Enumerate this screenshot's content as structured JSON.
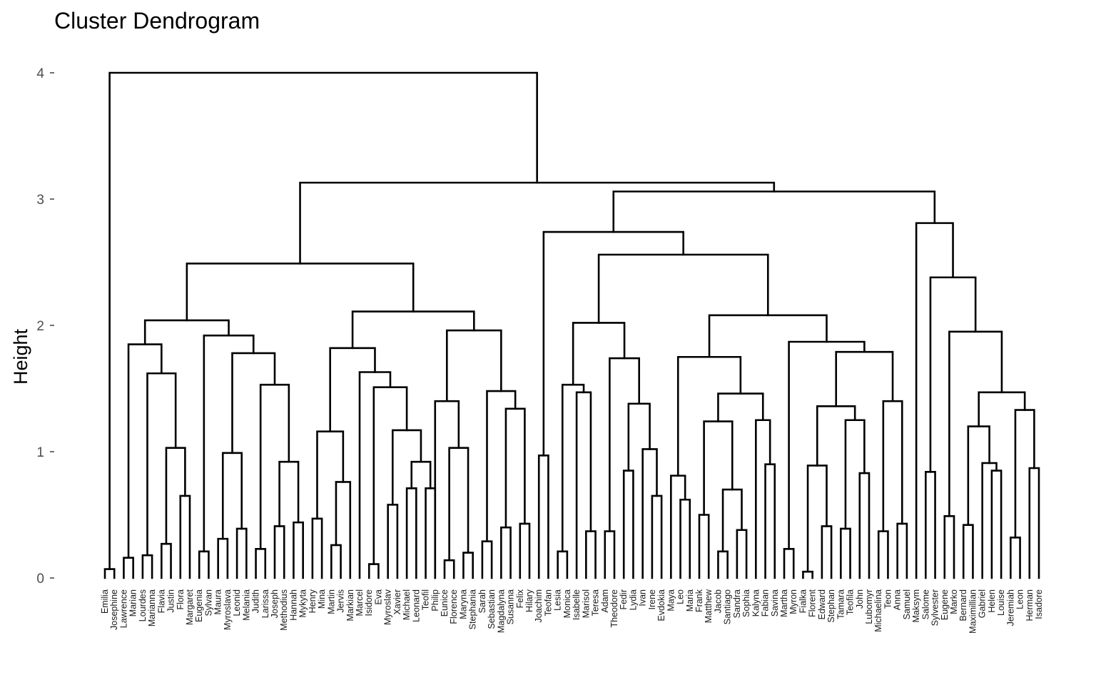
{
  "chart_data": {
    "type": "dendrogram",
    "title": "Cluster Dendrogram",
    "xlabel": "",
    "ylabel": "Height",
    "ylim": [
      0,
      4
    ],
    "yticks": [
      0,
      1,
      2,
      3,
      4
    ],
    "grid": false,
    "leaves": [
      "Emilia",
      "Josephine",
      "Lawrence",
      "Marian",
      "Lourdes",
      "Marianna",
      "Flavia",
      "Justin",
      "Flora",
      "Margaret",
      "Eugenia",
      "Sylvan",
      "Maura",
      "Myroslava",
      "Leonid",
      "Melania",
      "Judith",
      "Larissa",
      "Joseph",
      "Methodius",
      "Hannah",
      "Mykyta",
      "Henry",
      "Mina",
      "Martin",
      "Jervis",
      "Markian",
      "Marcel",
      "Isidore",
      "Eva",
      "Myroslav",
      "Xavier",
      "Michael",
      "Leonard",
      "Teofil",
      "Philip",
      "Eunice",
      "Florence",
      "Maryna",
      "Stephania",
      "Sarah",
      "Sebastian",
      "Magdalyna",
      "Susanna",
      "Felix",
      "Hilary",
      "Joachim",
      "Teofan",
      "Lesia",
      "Monica",
      "Isabelle",
      "Marisol",
      "Teresa",
      "Adam",
      "Theodore",
      "Fedir",
      "Lydia",
      "Ivan",
      "Irene",
      "Evdokia",
      "Maya",
      "Leo",
      "Maria",
      "Frank",
      "Matthew",
      "Jacob",
      "Santiago",
      "Sandra",
      "Sophia",
      "Kalyna",
      "Fabian",
      "Savina",
      "Martha",
      "Myron",
      "Fialka",
      "Florent",
      "Edward",
      "Stephan",
      "Tamara",
      "Teofila",
      "John",
      "Lubomyr",
      "Michaelina",
      "Teon",
      "Anna",
      "Samuel",
      "Maksym",
      "Salome",
      "Sylvester",
      "Eugene",
      "Marko",
      "Bernard",
      "Maximillian",
      "Gabriel",
      "Helen",
      "Louise",
      "Jeremiah",
      "Leon",
      "Herman",
      "Isadore"
    ],
    "merges": [
      [
        0,
        1,
        0.07
      ],
      [
        2,
        3,
        0.16
      ],
      [
        4,
        5,
        0.18
      ],
      [
        6,
        7,
        0.27
      ],
      [
        8,
        9,
        0.65
      ],
      [
        "C3",
        "C4",
        1.03
      ],
      [
        "C2",
        "C5",
        1.62
      ],
      [
        "C1",
        "C6",
        1.85
      ],
      [
        10,
        11,
        0.21
      ],
      [
        12,
        13,
        0.31
      ],
      [
        14,
        15,
        0.39
      ],
      [
        "C8",
        "C9",
        0.99
      ],
      [
        16,
        17,
        0.23
      ],
      [
        18,
        19,
        0.41
      ],
      [
        20,
        21,
        0.44
      ],
      [
        "C12",
        "C13",
        0.92
      ],
      [
        "C11",
        "C14",
        1.53
      ],
      [
        "C10",
        "C15",
        1.78
      ],
      [
        "C7",
        "C16",
        1.92
      ],
      [
        "C0",
        "C17",
        2.04
      ],
      [
        22,
        23,
        0.47
      ],
      [
        24,
        25,
        0.26
      ],
      [
        26,
        27,
        0.76
      ],
      [
        "C19",
        "C20",
        1.16
      ],
      [
        28,
        29,
        0.11
      ],
      [
        30,
        31,
        0.58
      ],
      [
        32,
        33,
        0.71
      ],
      [
        34,
        35,
        0.91
      ],
      [
        "C24",
        "C25",
        1.17
      ],
      [
        "C23",
        "C26",
        1.51
      ],
      [
        "C22",
        "C27",
        1.63
      ],
      [
        "C21",
        "C28",
        1.82
      ],
      [
        36,
        37,
        0.14
      ],
      [
        38,
        39,
        0.2
      ],
      [
        "C30",
        "C31",
        1.03
      ],
      [
        40,
        41,
        1.4
      ],
      [
        42,
        43,
        0.29
      ],
      [
        44,
        45,
        0.4
      ],
      [
        46,
        47,
        0.43
      ],
      [
        "C35",
        "C36",
        1.34
      ],
      [
        "C34",
        "C37",
        1.48
      ],
      [
        "C32",
        "C38",
        1.96
      ],
      [
        "C29",
        "C39",
        2.11
      ],
      [
        "C18",
        "C40",
        2.49
      ],
      [
        48,
        49,
        0.97
      ],
      [
        50,
        51,
        0.21
      ],
      [
        52,
        53,
        0.37
      ],
      [
        54,
        55,
        1.47
      ],
      [
        "C43",
        "C44",
        1.53
      ],
      [
        56,
        57,
        0.37
      ],
      [
        58,
        59,
        0.85
      ],
      [
        60,
        61,
        0.65
      ],
      [
        62,
        63,
        1.02
      ],
      [
        "C48",
        "C49",
        1.38
      ],
      [
        "C47",
        "C50",
        1.74
      ],
      [
        "C46",
        "C51",
        2.02
      ],
      [
        64,
        65,
        0.62
      ],
      [
        66,
        67,
        0.81
      ],
      [
        68,
        69,
        0.5
      ],
      [
        70,
        71,
        0.21
      ],
      [
        72,
        73,
        0.38
      ],
      [
        "C55",
        "C56",
        0.7
      ],
      [
        "C54",
        "C57",
        1.24
      ],
      [
        74,
        75,
        0.9
      ],
      [
        76,
        77,
        1.25
      ],
      [
        "C58",
        "C59",
        1.46
      ],
      [
        "C53",
        "C60",
        1.75
      ],
      [
        78,
        79,
        0.23
      ],
      [
        80,
        81,
        0.05
      ],
      [
        82,
        83,
        0.41
      ],
      [
        "C63",
        "C64",
        0.89
      ],
      [
        84,
        85,
        0.39
      ],
      [
        86,
        87,
        0.83
      ],
      [
        "C66",
        "C67",
        1.25
      ],
      [
        "C65",
        "C68",
        1.36
      ],
      [
        88,
        89,
        0.37
      ],
      [
        90,
        91,
        0.43
      ],
      [
        "C70",
        "C71",
        1.4
      ],
      [
        "C69",
        "C72",
        1.79
      ],
      [
        "C62",
        "C73",
        1.87
      ],
      [
        "C61",
        "C74",
        2.08
      ],
      [
        "C52",
        "C75",
        2.56
      ],
      [
        "C45",
        "C76",
        2.74
      ],
      [
        92,
        93,
        0.84
      ],
      [
        94,
        95,
        0.49
      ],
      [
        96,
        97,
        0.42
      ],
      [
        98,
        99,
        0.85
      ],
      [
        "C79",
        "C80",
        0.91
      ],
      [
        "C78",
        "C81",
        1.2
      ],
      [
        100,
        101,
        0.32
      ],
      [
        102,
        103,
        0.87
      ],
      [
        "C83",
        "C84",
        1.33
      ],
      [
        "C82",
        "C85",
        1.47
      ],
      [
        "C77",
        "C86",
        1.95
      ],
      [
        "C87",
        "C88",
        2.38
      ],
      [
        "C86x",
        "C89",
        2.81
      ],
      [
        "C77x",
        "C90",
        3.06
      ],
      [
        "C42",
        "C91",
        3.13
      ],
      [
        999,
        "C92",
        4.0
      ]
    ]
  }
}
